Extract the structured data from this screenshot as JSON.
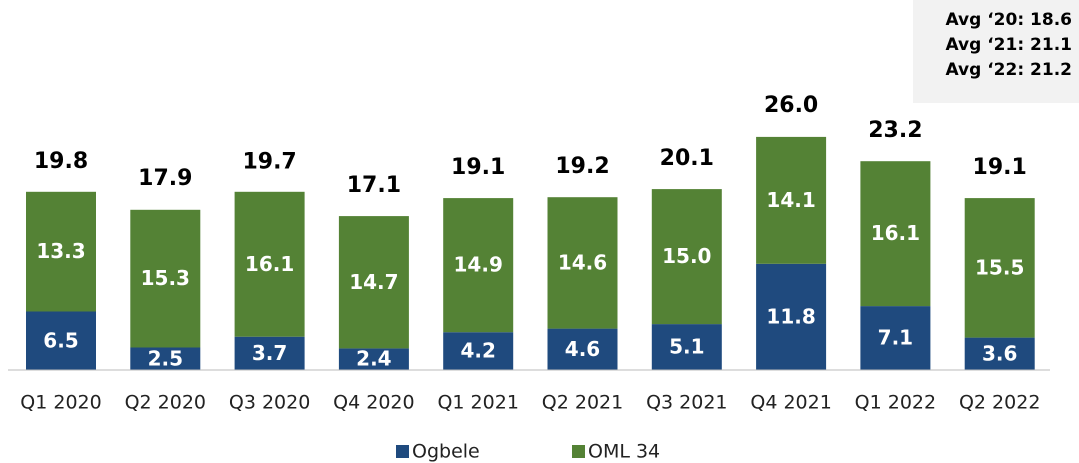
{
  "chart_data": {
    "type": "stacked_bar",
    "categories": [
      "Q1 2020",
      "Q2 2020",
      "Q3 2020",
      "Q4 2020",
      "Q1 2021",
      "Q2 2021",
      "Q3 2021",
      "Q4 2021",
      "Q1 2022",
      "Q2 2022"
    ],
    "series": [
      {
        "name": "Ogbele",
        "color": "#1f4a7e",
        "values": [
          6.5,
          2.5,
          3.7,
          2.4,
          4.2,
          4.6,
          5.1,
          11.8,
          7.1,
          3.6
        ],
        "value_labels": [
          "6.5",
          "2.5",
          "3.7",
          "2.4",
          "4.2",
          "4.6",
          "5.1",
          "11.8",
          "7.1",
          "3.6"
        ]
      },
      {
        "name": "OML 34",
        "color": "#548235",
        "values": [
          13.3,
          15.3,
          16.1,
          14.7,
          14.9,
          14.6,
          15.0,
          14.1,
          16.1,
          15.5
        ],
        "value_labels": [
          "13.3",
          "15.3",
          "16.1",
          "14.7",
          "14.9",
          "14.6",
          "15.0",
          "14.1",
          "16.1",
          "15.5"
        ]
      }
    ],
    "totals": [
      19.8,
      17.9,
      19.7,
      17.1,
      19.1,
      19.2,
      20.1,
      26.0,
      23.2,
      19.1
    ],
    "total_labels": [
      "19.8",
      "17.9",
      "19.7",
      "17.1",
      "19.1",
      "19.2",
      "20.1",
      "26.0",
      "23.2",
      "19.1"
    ],
    "annotations": [
      "Avg ‘20: 18.6",
      "Avg ‘21: 21.1",
      "Avg ‘22: 21.2"
    ]
  }
}
